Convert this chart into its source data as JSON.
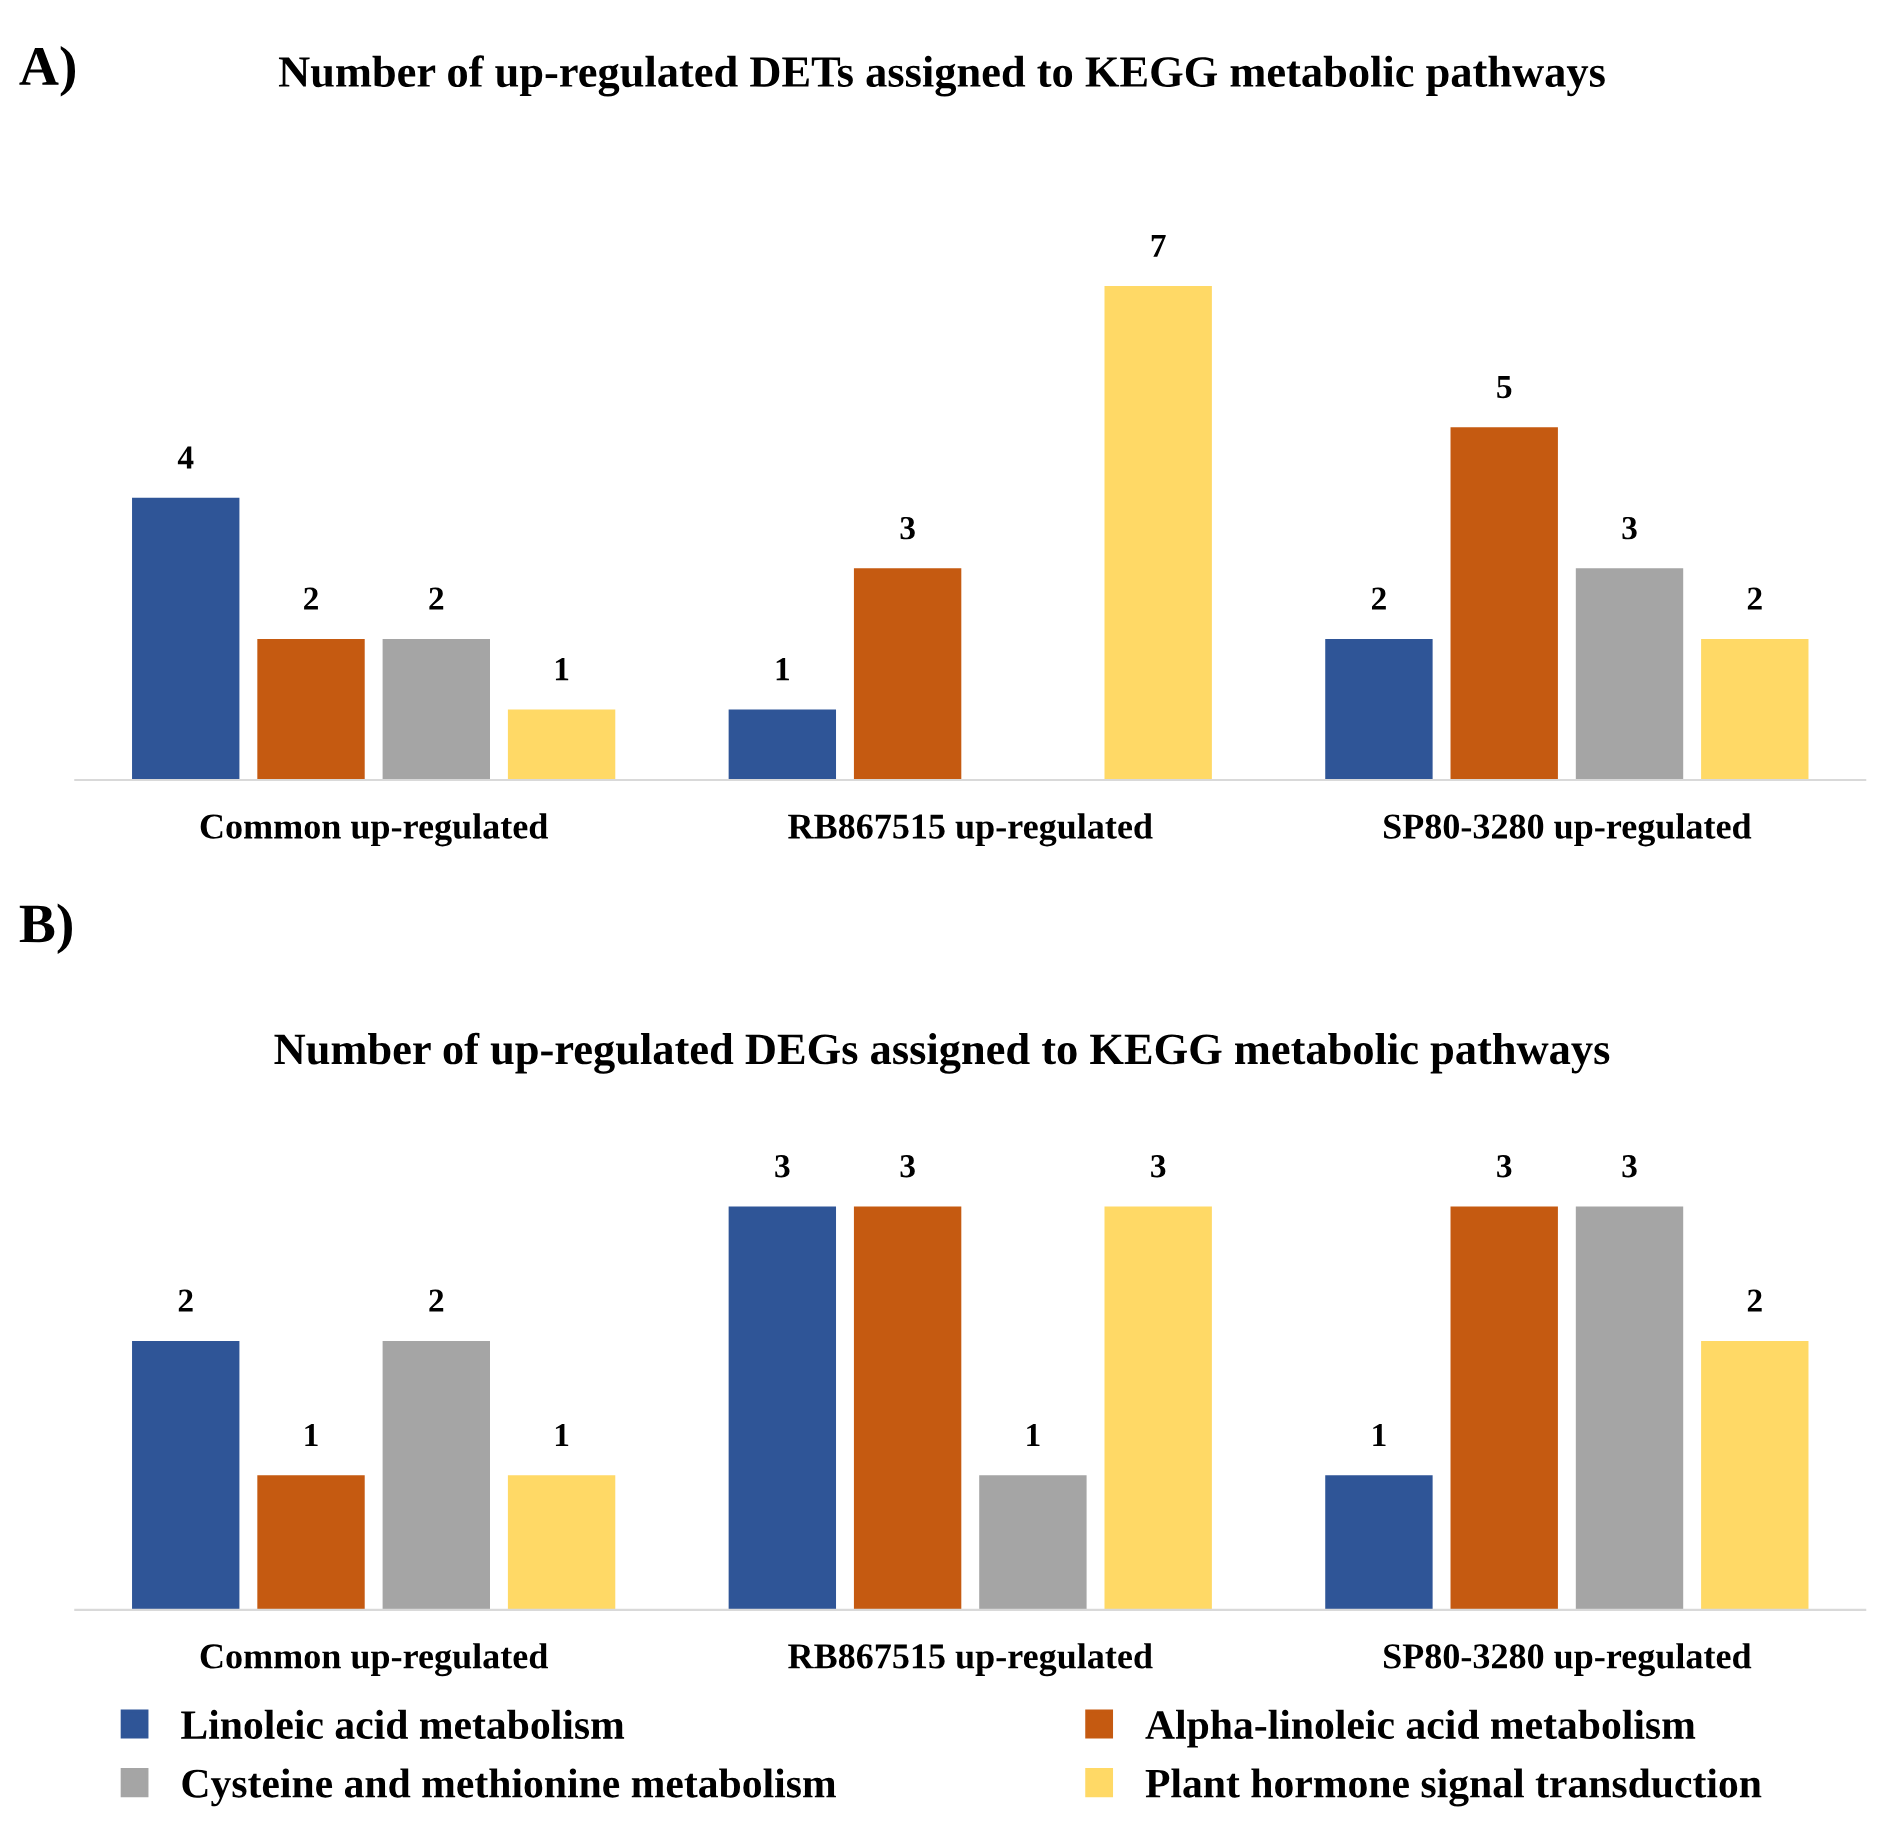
{
  "chart_data": [
    {
      "type": "bar",
      "title": "Number of up-regulated DETs assigned to KEGG metabolic pathways",
      "annotations": [
        "A)"
      ],
      "categories": [
        "Common up-regulated",
        "RB867515 up-regulated",
        "SP80-3280 up-regulated"
      ],
      "data_labels": true,
      "series": [
        {
          "color": "#2f5597",
          "values": [
            4,
            1,
            2
          ]
        },
        {
          "color": "#c55a11",
          "values": [
            2,
            3,
            5
          ]
        },
        {
          "color": "#a5a5a5",
          "values": [
            2,
            null,
            3
          ]
        },
        {
          "color": "#ffd966",
          "values": [
            1,
            7,
            2
          ]
        }
      ]
    },
    {
      "type": "bar",
      "title": "Number of up-regulated DEGs assigned to KEGG metabolic pathways",
      "annotations": [
        "B)"
      ],
      "categories": [
        "Common up-regulated",
        "RB867515 up-regulated",
        "SP80-3280 up-regulated"
      ],
      "data_labels": true,
      "legend": "bottom",
      "series": [
        {
          "name": "Linoleic acid metabolism",
          "color": "#2f5597",
          "values": [
            2,
            3,
            1
          ]
        },
        {
          "name": "Alpha-linoleic acid metabolism",
          "color": "#c55a11",
          "values": [
            1,
            3,
            3
          ]
        },
        {
          "name": "Cysteine and methionine metabolism",
          "color": "#a5a5a5",
          "values": [
            2,
            1,
            3
          ]
        },
        {
          "name": "Plant hormone signal transduction",
          "color": "#ffd966",
          "values": [
            1,
            3,
            2
          ]
        }
      ]
    }
  ]
}
